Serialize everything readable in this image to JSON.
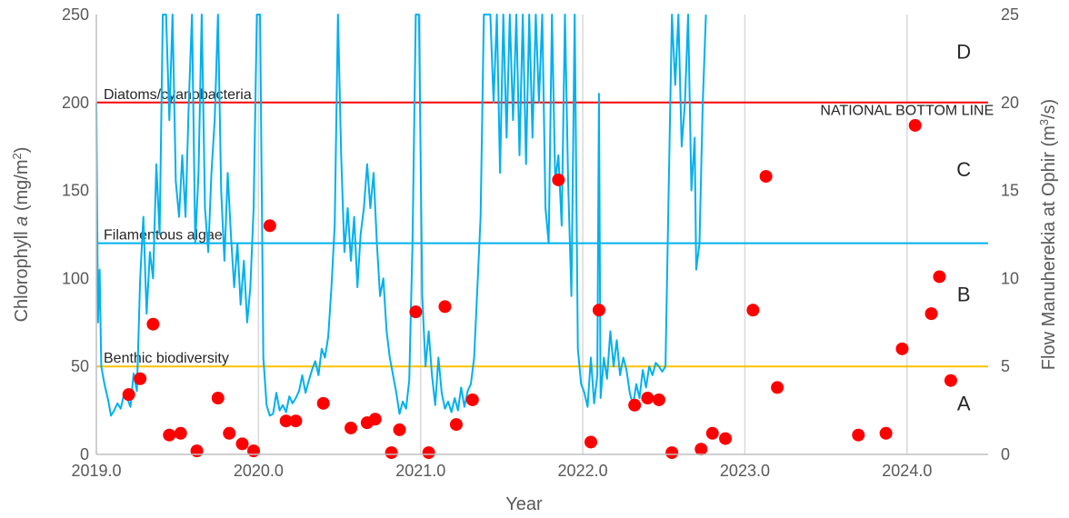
{
  "chart_data": {
    "type": "line",
    "xlabel": "Year",
    "ylabel": "Chlorophyll a (mg/m²)",
    "ylabel_parts": {
      "prefix": "Chlorophyll ",
      "italic": "a",
      "suffix": " (mg/m",
      "sup": "2",
      "end": ")"
    },
    "y2label": "Flow Manuherekia at Ophir (m³/s)",
    "y2label_parts": {
      "prefix": "Flow Manuherekia at Ophir (m",
      "sup": "3",
      "end": "/s)"
    },
    "xlim": [
      2019.0,
      2024.5
    ],
    "ylim": [
      0,
      250
    ],
    "y2lim": [
      0,
      25
    ],
    "x_ticks": [
      "2019.0",
      "2020.0",
      "2021.0",
      "2022.0",
      "2023.0",
      "2024.0"
    ],
    "x_tick_values": [
      2019.0,
      2020.0,
      2021.0,
      2022.0,
      2023.0,
      2024.0
    ],
    "y_ticks": [
      "0",
      "50",
      "100",
      "150",
      "200",
      "250"
    ],
    "y_tick_values": [
      0,
      50,
      100,
      150,
      200,
      250
    ],
    "y2_ticks": [
      "0",
      "5",
      "10",
      "15",
      "20",
      "25"
    ],
    "y2_tick_values": [
      0,
      5,
      10,
      15,
      20,
      25
    ],
    "grid": "vertical",
    "colors": {
      "flow": "#00b0f0",
      "points": "#ff0000",
      "diatoms": "#ff0000",
      "filamentous": "#00b0f0",
      "benthic": "#ffc000",
      "grid": "#d9d9d9"
    },
    "threshold_lines": [
      {
        "label": "Diatoms/cyanobacteria",
        "value": 200,
        "color": "#ff0000"
      },
      {
        "label": "Filamentous algae",
        "value": 120,
        "color": "#00b0f0"
      },
      {
        "label": "Benthic biodiversity",
        "value": 50,
        "color": "#ffc000"
      }
    ],
    "annotations": [
      {
        "text": "NATIONAL BOTTOM LINE",
        "x": 2024.0,
        "y": 193
      },
      {
        "text": "D",
        "x": 2024.35,
        "y": 225
      },
      {
        "text": "C",
        "x": 2024.35,
        "y": 158
      },
      {
        "text": "B",
        "x": 2024.35,
        "y": 87
      },
      {
        "text": "A",
        "x": 2024.35,
        "y": 25
      }
    ],
    "points": [
      [
        2019.2,
        34
      ],
      [
        2019.27,
        43
      ],
      [
        2019.35,
        74
      ],
      [
        2019.45,
        11
      ],
      [
        2019.52,
        12
      ],
      [
        2019.62,
        2
      ],
      [
        2019.75,
        32
      ],
      [
        2019.82,
        12
      ],
      [
        2019.9,
        6
      ],
      [
        2019.97,
        2
      ],
      [
        2020.07,
        130
      ],
      [
        2020.17,
        19
      ],
      [
        2020.23,
        19
      ],
      [
        2020.4,
        29
      ],
      [
        2020.57,
        15
      ],
      [
        2020.67,
        18
      ],
      [
        2020.72,
        20
      ],
      [
        2020.82,
        1
      ],
      [
        2020.87,
        14
      ],
      [
        2020.97,
        81
      ],
      [
        2021.05,
        1
      ],
      [
        2021.15,
        84
      ],
      [
        2021.22,
        17
      ],
      [
        2021.32,
        31
      ],
      [
        2021.85,
        156
      ],
      [
        2022.05,
        7
      ],
      [
        2022.1,
        82
      ],
      [
        2022.32,
        28
      ],
      [
        2022.4,
        32
      ],
      [
        2022.47,
        31
      ],
      [
        2022.55,
        1
      ],
      [
        2022.73,
        3
      ],
      [
        2022.8,
        12
      ],
      [
        2022.88,
        9
      ],
      [
        2023.05,
        82
      ],
      [
        2023.13,
        158
      ],
      [
        2023.2,
        38
      ],
      [
        2023.7,
        11
      ],
      [
        2023.87,
        12
      ],
      [
        2023.97,
        60
      ],
      [
        2024.05,
        187
      ],
      [
        2024.15,
        80
      ],
      [
        2024.2,
        101
      ],
      [
        2024.27,
        42
      ]
    ],
    "flow_series": [
      [
        2019.0,
        20
      ],
      [
        2019.01,
        7.5
      ],
      [
        2019.02,
        10.5
      ],
      [
        2019.03,
        5
      ],
      [
        2019.05,
        4
      ],
      [
        2019.07,
        3.2
      ],
      [
        2019.09,
        2.2
      ],
      [
        2019.11,
        2.5
      ],
      [
        2019.13,
        2.9
      ],
      [
        2019.15,
        2.6
      ],
      [
        2019.17,
        3.4
      ],
      [
        2019.19,
        3.2
      ],
      [
        2019.21,
        2.7
      ],
      [
        2019.23,
        4.6
      ],
      [
        2019.25,
        3.6
      ],
      [
        2019.27,
        10
      ],
      [
        2019.29,
        13.5
      ],
      [
        2019.31,
        8
      ],
      [
        2019.33,
        11.5
      ],
      [
        2019.35,
        10
      ],
      [
        2019.37,
        16.5
      ],
      [
        2019.39,
        12.5
      ],
      [
        2019.41,
        25
      ],
      [
        2019.43,
        25
      ],
      [
        2019.45,
        19
      ],
      [
        2019.47,
        25
      ],
      [
        2019.49,
        15.5
      ],
      [
        2019.51,
        13.5
      ],
      [
        2019.53,
        17
      ],
      [
        2019.55,
        13.5
      ],
      [
        2019.57,
        20
      ],
      [
        2019.59,
        25
      ],
      [
        2019.61,
        12
      ],
      [
        2019.63,
        16
      ],
      [
        2019.65,
        25
      ],
      [
        2019.67,
        14
      ],
      [
        2019.69,
        11.5
      ],
      [
        2019.71,
        16
      ],
      [
        2019.73,
        19
      ],
      [
        2019.75,
        25
      ],
      [
        2019.77,
        15
      ],
      [
        2019.79,
        11
      ],
      [
        2019.81,
        16
      ],
      [
        2019.83,
        12.5
      ],
      [
        2019.85,
        9.5
      ],
      [
        2019.87,
        12
      ],
      [
        2019.89,
        8.5
      ],
      [
        2019.91,
        11
      ],
      [
        2019.93,
        7.5
      ],
      [
        2019.95,
        9.5
      ],
      [
        2019.97,
        14
      ],
      [
        2019.99,
        25
      ],
      [
        2020.01,
        25
      ],
      [
        2020.03,
        5.5
      ],
      [
        2020.05,
        2.8
      ],
      [
        2020.07,
        2.2
      ],
      [
        2020.09,
        2.3
      ],
      [
        2020.11,
        3.5
      ],
      [
        2020.13,
        2.5
      ],
      [
        2020.15,
        2.8
      ],
      [
        2020.17,
        2.4
      ],
      [
        2020.19,
        3.3
      ],
      [
        2020.21,
        2.9
      ],
      [
        2020.23,
        3.2
      ],
      [
        2020.25,
        3.6
      ],
      [
        2020.27,
        4.5
      ],
      [
        2020.29,
        3.5
      ],
      [
        2020.31,
        4.2
      ],
      [
        2020.33,
        4.8
      ],
      [
        2020.35,
        5.3
      ],
      [
        2020.37,
        4.5
      ],
      [
        2020.39,
        6.0
      ],
      [
        2020.41,
        5.5
      ],
      [
        2020.43,
        6.7
      ],
      [
        2020.45,
        9.5
      ],
      [
        2020.47,
        13
      ],
      [
        2020.49,
        25
      ],
      [
        2020.51,
        17
      ],
      [
        2020.53,
        11.5
      ],
      [
        2020.55,
        14
      ],
      [
        2020.57,
        11
      ],
      [
        2020.59,
        13.5
      ],
      [
        2020.61,
        9.5
      ],
      [
        2020.63,
        12.5
      ],
      [
        2020.65,
        14
      ],
      [
        2020.67,
        16.5
      ],
      [
        2020.69,
        14
      ],
      [
        2020.71,
        16
      ],
      [
        2020.73,
        12
      ],
      [
        2020.75,
        9
      ],
      [
        2020.77,
        10
      ],
      [
        2020.79,
        7
      ],
      [
        2020.81,
        5.5
      ],
      [
        2020.83,
        4.5
      ],
      [
        2020.85,
        3.5
      ],
      [
        2020.87,
        2.3
      ],
      [
        2020.89,
        3.0
      ],
      [
        2020.91,
        2.6
      ],
      [
        2020.93,
        4.2
      ],
      [
        2020.95,
        12
      ],
      [
        2020.97,
        25
      ],
      [
        2020.99,
        25
      ],
      [
        2021.01,
        9
      ],
      [
        2021.03,
        5
      ],
      [
        2021.05,
        7
      ],
      [
        2021.07,
        4.5
      ],
      [
        2021.09,
        2.8
      ],
      [
        2021.11,
        5.5
      ],
      [
        2021.13,
        3.5
      ],
      [
        2021.15,
        2.6
      ],
      [
        2021.17,
        3.0
      ],
      [
        2021.19,
        2.4
      ],
      [
        2021.21,
        3.2
      ],
      [
        2021.23,
        2.5
      ],
      [
        2021.25,
        3.8
      ],
      [
        2021.27,
        2.7
      ],
      [
        2021.29,
        3.6
      ],
      [
        2021.31,
        4.0
      ],
      [
        2021.33,
        5.5
      ],
      [
        2021.35,
        9.5
      ],
      [
        2021.37,
        13.5
      ],
      [
        2021.39,
        25
      ],
      [
        2021.41,
        25
      ],
      [
        2021.43,
        25
      ],
      [
        2021.45,
        20
      ],
      [
        2021.47,
        25
      ],
      [
        2021.49,
        16
      ],
      [
        2021.51,
        25
      ],
      [
        2021.53,
        18
      ],
      [
        2021.55,
        25
      ],
      [
        2021.57,
        19
      ],
      [
        2021.59,
        25
      ],
      [
        2021.61,
        17
      ],
      [
        2021.63,
        25
      ],
      [
        2021.65,
        16.5
      ],
      [
        2021.67,
        25
      ],
      [
        2021.69,
        18
      ],
      [
        2021.71,
        25
      ],
      [
        2021.73,
        20
      ],
      [
        2021.75,
        25
      ],
      [
        2021.77,
        14
      ],
      [
        2021.79,
        12
      ],
      [
        2021.81,
        25
      ],
      [
        2021.83,
        15.5
      ],
      [
        2021.85,
        17
      ],
      [
        2021.87,
        13
      ],
      [
        2021.89,
        25
      ],
      [
        2021.91,
        15.5
      ],
      [
        2021.93,
        9
      ],
      [
        2021.95,
        25
      ],
      [
        2021.97,
        6
      ],
      [
        2021.99,
        4
      ],
      [
        2022.01,
        3.5
      ],
      [
        2022.03,
        2.7
      ],
      [
        2022.05,
        5.5
      ],
      [
        2022.07,
        2.9
      ],
      [
        2022.09,
        4.5
      ],
      [
        2022.1,
        20.5
      ],
      [
        2022.11,
        3.2
      ],
      [
        2022.13,
        5.5
      ],
      [
        2022.15,
        4.3
      ],
      [
        2022.17,
        7
      ],
      [
        2022.19,
        5
      ],
      [
        2022.21,
        6.5
      ],
      [
        2022.23,
        4.5
      ],
      [
        2022.25,
        5.5
      ],
      [
        2022.27,
        4.8
      ],
      [
        2022.29,
        3.5
      ],
      [
        2022.31,
        2.8
      ],
      [
        2022.33,
        4.0
      ],
      [
        2022.35,
        3.2
      ],
      [
        2022.37,
        4.8
      ],
      [
        2022.39,
        3.8
      ],
      [
        2022.41,
        5.0
      ],
      [
        2022.43,
        4.5
      ],
      [
        2022.45,
        5.2
      ],
      [
        2022.47,
        5.0
      ],
      [
        2022.49,
        4.7
      ],
      [
        2022.51,
        5.0
      ],
      [
        2022.53,
        15
      ],
      [
        2022.55,
        25
      ],
      [
        2022.57,
        21
      ],
      [
        2022.59,
        25
      ],
      [
        2022.61,
        17.5
      ],
      [
        2022.63,
        20
      ],
      [
        2022.65,
        25
      ],
      [
        2022.67,
        15
      ],
      [
        2022.69,
        18
      ],
      [
        2022.7,
        10.5
      ],
      [
        2022.72,
        12
      ],
      [
        2022.74,
        20
      ],
      [
        2022.76,
        25
      ]
    ]
  }
}
